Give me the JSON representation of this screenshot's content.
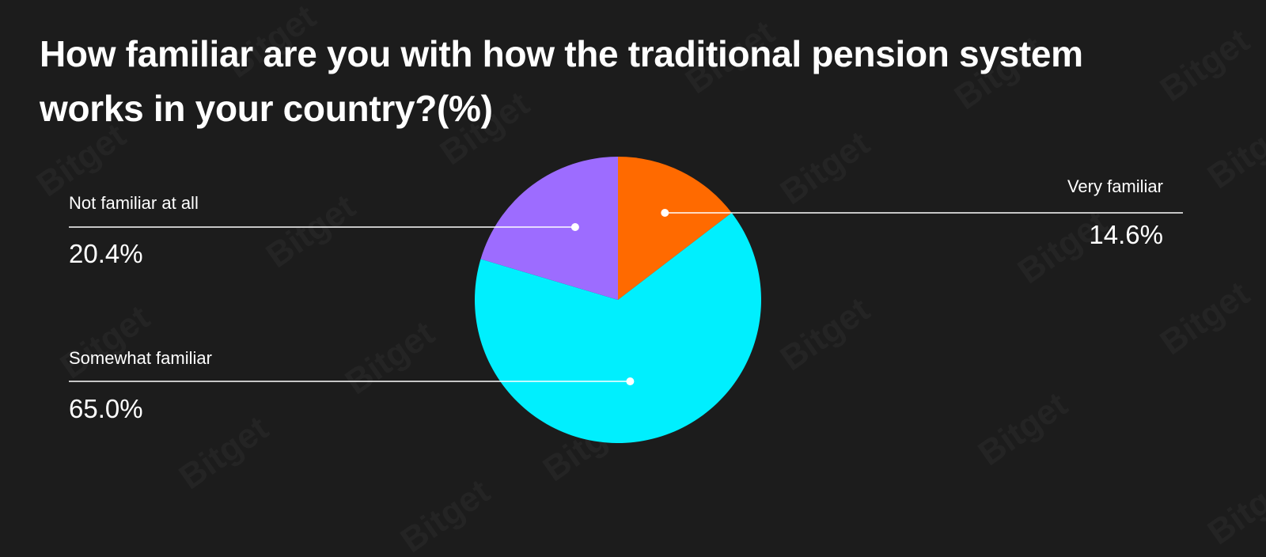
{
  "chart_data": {
    "type": "pie",
    "title_lines": [
      "How familiar are you with how the traditional pension system",
      "works in your country?(%)"
    ],
    "slices": [
      {
        "label": "Very familiar",
        "value": 14.6,
        "display": "14.6%",
        "color": "#ff6a00"
      },
      {
        "label": "Somewhat familiar",
        "value": 65.0,
        "display": "65.0%",
        "color": "#00effe"
      },
      {
        "label": "Not familiar at all",
        "value": 20.4,
        "display": "20.4%",
        "color": "#9d6cff"
      }
    ],
    "start_angle": "12 o'clock",
    "direction": "clockwise"
  },
  "watermark": "Bitget"
}
